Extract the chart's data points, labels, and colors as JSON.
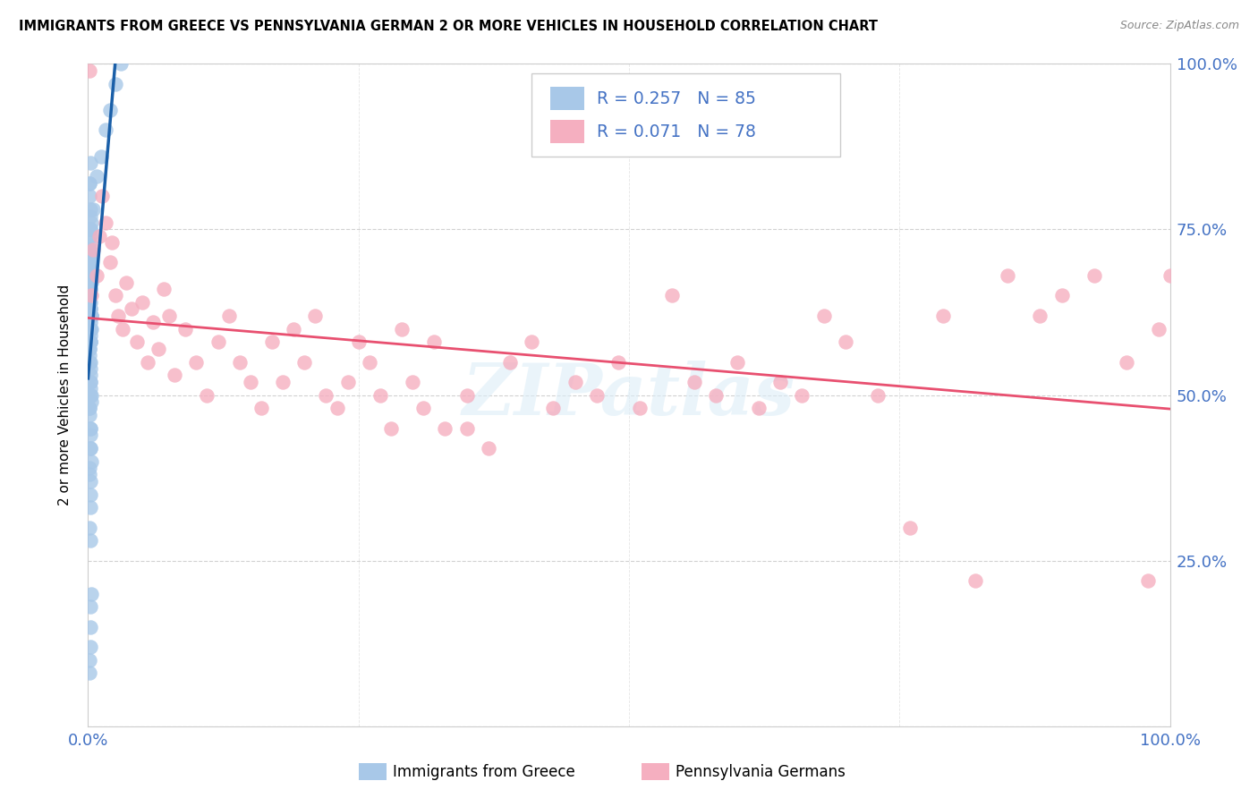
{
  "title": "IMMIGRANTS FROM GREECE VS PENNSYLVANIA GERMAN 2 OR MORE VEHICLES IN HOUSEHOLD CORRELATION CHART",
  "source": "Source: ZipAtlas.com",
  "ylabel": "2 or more Vehicles in Household",
  "legend_label1": "Immigrants from Greece",
  "legend_label2": "Pennsylvania Germans",
  "R1": 0.257,
  "N1": 85,
  "R2": 0.071,
  "N2": 78,
  "color1": "#a8c8e8",
  "color2": "#f5afc0",
  "line_color1": "#1a5fa8",
  "line_color2": "#e85070",
  "dashed_line_color": "#b0c8e0",
  "blue_scatter_x": [
    0.001,
    0.002,
    0.001,
    0.002,
    0.003,
    0.001,
    0.002,
    0.002,
    0.003,
    0.001,
    0.002,
    0.001,
    0.002,
    0.003,
    0.001,
    0.002,
    0.002,
    0.001,
    0.003,
    0.002,
    0.001,
    0.002,
    0.002,
    0.001,
    0.003,
    0.002,
    0.001,
    0.002,
    0.002,
    0.001,
    0.002,
    0.002,
    0.003,
    0.001,
    0.002,
    0.002,
    0.001,
    0.002,
    0.003,
    0.002,
    0.001,
    0.002,
    0.002,
    0.001,
    0.002,
    0.003,
    0.001,
    0.002,
    0.002,
    0.001,
    0.002,
    0.001,
    0.002,
    0.002,
    0.003,
    0.001,
    0.002,
    0.002,
    0.001,
    0.002,
    0.002,
    0.001,
    0.002,
    0.003,
    0.001,
    0.002,
    0.002,
    0.001,
    0.002,
    0.003,
    0.001,
    0.002,
    0.002,
    0.001,
    0.002,
    0.003,
    0.002,
    0.001,
    0.005,
    0.008,
    0.012,
    0.016,
    0.02,
    0.025,
    0.03
  ],
  "blue_scatter_y": [
    0.65,
    0.68,
    0.72,
    0.75,
    0.7,
    0.62,
    0.66,
    0.63,
    0.67,
    0.6,
    0.58,
    0.73,
    0.64,
    0.71,
    0.69,
    0.74,
    0.77,
    0.8,
    0.76,
    0.65,
    0.82,
    0.85,
    0.78,
    0.6,
    0.62,
    0.55,
    0.57,
    0.5,
    0.52,
    0.48,
    0.45,
    0.42,
    0.4,
    0.38,
    0.35,
    0.33,
    0.3,
    0.28,
    0.62,
    0.58,
    0.64,
    0.61,
    0.59,
    0.56,
    0.53,
    0.5,
    0.47,
    0.44,
    0.68,
    0.65,
    0.7,
    0.72,
    0.66,
    0.63,
    0.6,
    0.57,
    0.54,
    0.51,
    0.48,
    0.45,
    0.42,
    0.39,
    0.37,
    0.62,
    0.65,
    0.6,
    0.58,
    0.55,
    0.52,
    0.49,
    0.1,
    0.12,
    0.15,
    0.08,
    0.18,
    0.2,
    0.75,
    0.82,
    0.78,
    0.83,
    0.86,
    0.9,
    0.93,
    0.97,
    1.0
  ],
  "pink_scatter_x": [
    0.001,
    0.003,
    0.005,
    0.008,
    0.01,
    0.013,
    0.016,
    0.02,
    0.022,
    0.025,
    0.028,
    0.032,
    0.035,
    0.04,
    0.045,
    0.05,
    0.055,
    0.06,
    0.065,
    0.07,
    0.075,
    0.08,
    0.09,
    0.1,
    0.11,
    0.12,
    0.13,
    0.14,
    0.15,
    0.16,
    0.17,
    0.18,
    0.19,
    0.2,
    0.21,
    0.22,
    0.23,
    0.24,
    0.25,
    0.26,
    0.27,
    0.28,
    0.29,
    0.3,
    0.31,
    0.32,
    0.33,
    0.35,
    0.37,
    0.39,
    0.41,
    0.43,
    0.45,
    0.47,
    0.49,
    0.51,
    0.54,
    0.56,
    0.58,
    0.6,
    0.62,
    0.64,
    0.66,
    0.68,
    0.7,
    0.73,
    0.76,
    0.79,
    0.82,
    0.85,
    0.88,
    0.9,
    0.93,
    0.96,
    0.98,
    0.99,
    1.0,
    0.35
  ],
  "pink_scatter_y": [
    0.99,
    0.65,
    0.72,
    0.68,
    0.74,
    0.8,
    0.76,
    0.7,
    0.73,
    0.65,
    0.62,
    0.6,
    0.67,
    0.63,
    0.58,
    0.64,
    0.55,
    0.61,
    0.57,
    0.66,
    0.62,
    0.53,
    0.6,
    0.55,
    0.5,
    0.58,
    0.62,
    0.55,
    0.52,
    0.48,
    0.58,
    0.52,
    0.6,
    0.55,
    0.62,
    0.5,
    0.48,
    0.52,
    0.58,
    0.55,
    0.5,
    0.45,
    0.6,
    0.52,
    0.48,
    0.58,
    0.45,
    0.5,
    0.42,
    0.55,
    0.58,
    0.48,
    0.52,
    0.5,
    0.55,
    0.48,
    0.65,
    0.52,
    0.5,
    0.55,
    0.48,
    0.52,
    0.5,
    0.62,
    0.58,
    0.5,
    0.3,
    0.62,
    0.22,
    0.68,
    0.62,
    0.65,
    0.68,
    0.55,
    0.22,
    0.6,
    0.68,
    0.45
  ]
}
